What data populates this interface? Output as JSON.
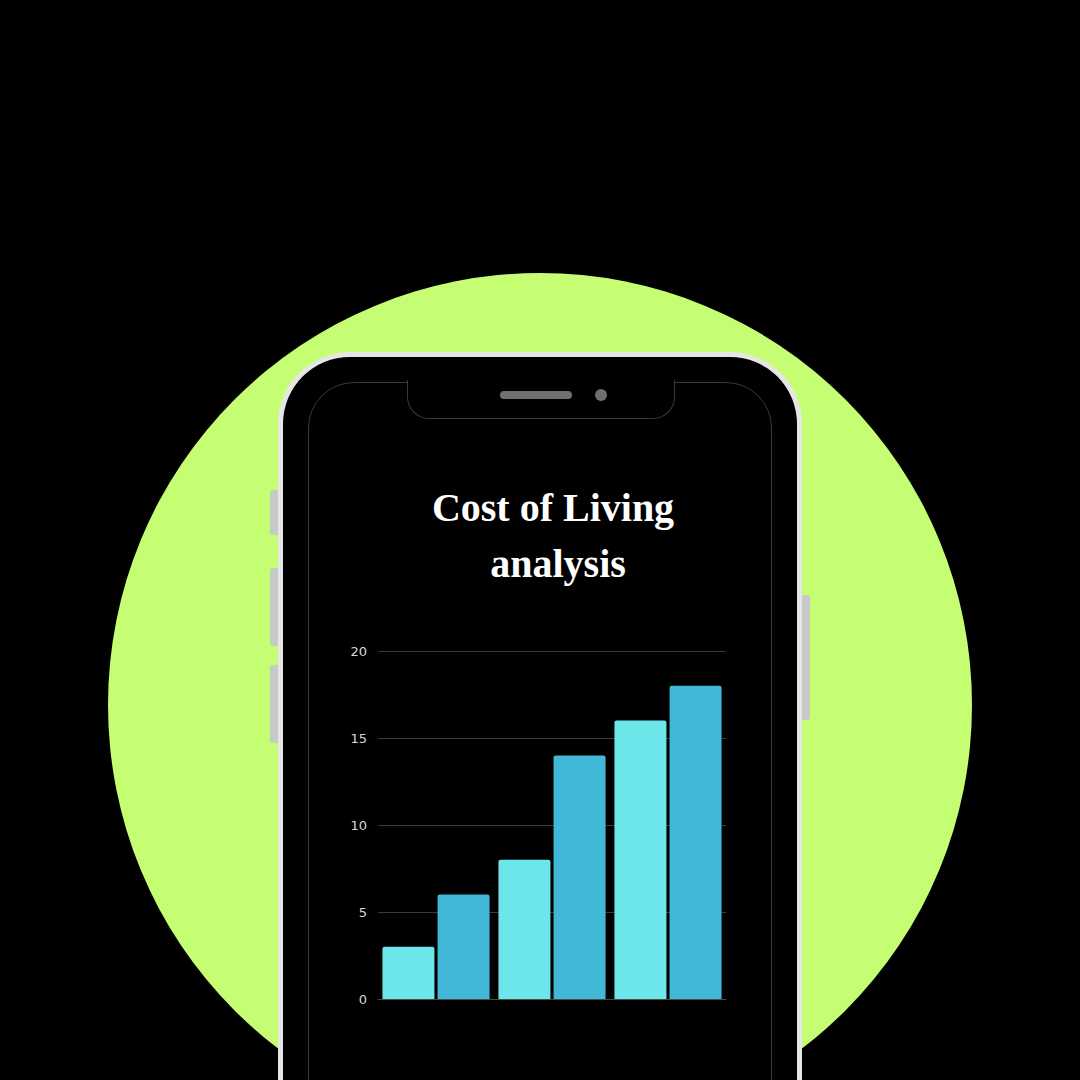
{
  "chart_data": {
    "type": "bar",
    "title": "Cost of Living analysis",
    "categories": [
      null,
      null,
      null
    ],
    "series": [
      {
        "color": "#6ce6ea",
        "values": [
          3,
          8,
          16
        ]
      },
      {
        "color": "#42b8d8",
        "values": [
          6,
          14,
          18
        ]
      }
    ],
    "ylim": [
      0,
      20
    ],
    "yticks": [
      0,
      5,
      10,
      15,
      20
    ],
    "grid": true
  }
}
